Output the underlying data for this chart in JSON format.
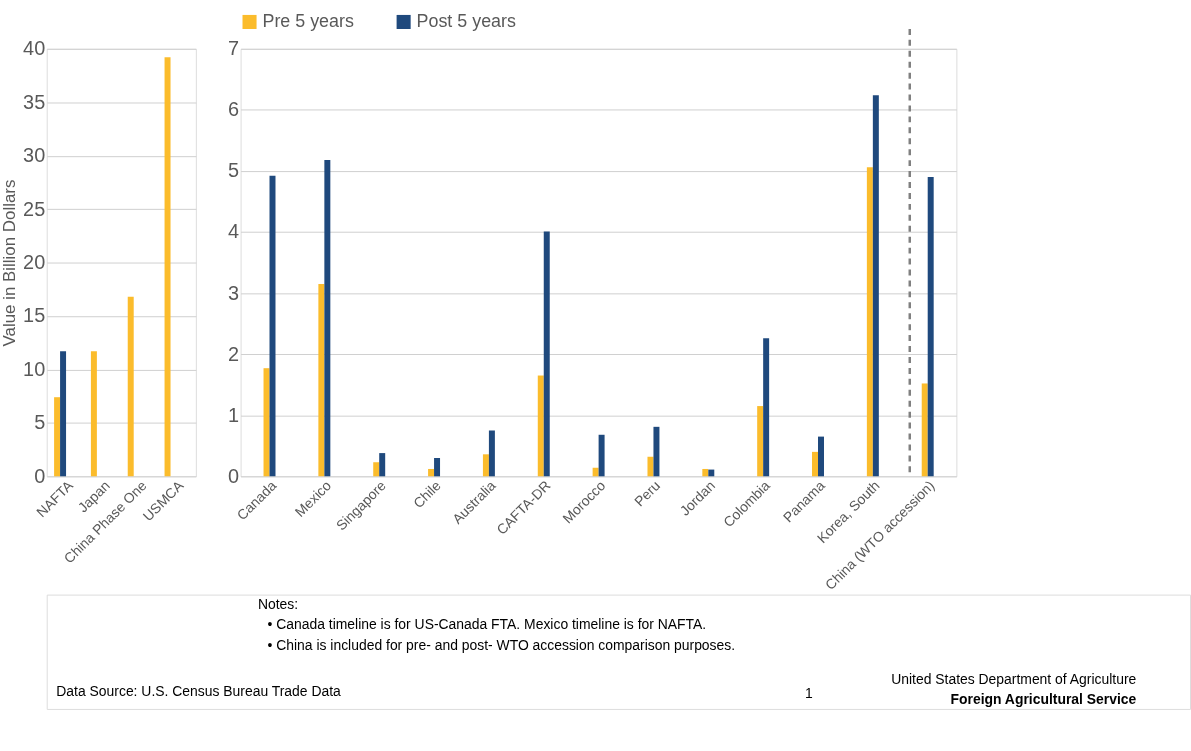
{
  "chart_data": [
    {
      "type": "bar",
      "ylabel": "Value in Billion Dollars",
      "categories": [
        "NAFTA",
        "Japan",
        "China Phase One",
        "USMCA"
      ],
      "series": [
        {
          "color": "#fbbc2c",
          "values": [
            7.4,
            11.7,
            16.8,
            39.2
          ]
        },
        {
          "color": "#1f497d",
          "values": [
            11.7,
            null,
            null,
            null
          ]
        }
      ],
      "ylim": [
        0,
        40
      ],
      "yticks": [
        0,
        5,
        10,
        15,
        20,
        25,
        30,
        35,
        40
      ],
      "grid": "y",
      "annotations": [
        "Data Source: U.S. Census Bureau Trade Data"
      ]
    },
    {
      "type": "bar",
      "categories": [
        "Canada",
        "Mexico",
        "Singapore",
        "Chile",
        "Australia",
        "CAFTA-DR",
        "Morocco",
        "Peru",
        "Jordan",
        "Colombia",
        "Panama",
        "Korea, South",
        "China (WTO accession)"
      ],
      "series": [
        {
          "name": "Pre 5 years",
          "color": "#fbbc2c",
          "values": [
            1.77,
            3.15,
            0.23,
            0.12,
            0.36,
            1.65,
            0.14,
            0.32,
            0.12,
            1.15,
            0.4,
            5.06,
            1.52
          ]
        },
        {
          "name": "Post 5 years",
          "color": "#1f497d",
          "values": [
            4.92,
            5.18,
            0.38,
            0.3,
            0.75,
            4.01,
            0.68,
            0.81,
            0.11,
            2.26,
            0.65,
            6.24,
            4.9
          ]
        }
      ],
      "ylim": [
        0,
        7
      ],
      "yticks": [
        0,
        1,
        2,
        3,
        4,
        5,
        6,
        7
      ],
      "grid": "y",
      "legend": "top",
      "ref_lines": [
        {
          "axis": "x",
          "value": "China (WTO accession)",
          "color": "#808080",
          "line_style": "dashed"
        }
      ],
      "annotations": [
        "Notes:",
        "• Canada timeline is for US-Canada FTA. Mexico timeline is for NAFTA.",
        "• China is included for pre- and post- WTO accession comparison purposes.",
        "1",
        "United States Department of Agriculture",
        "Foreign Agricultural Service"
      ]
    }
  ]
}
